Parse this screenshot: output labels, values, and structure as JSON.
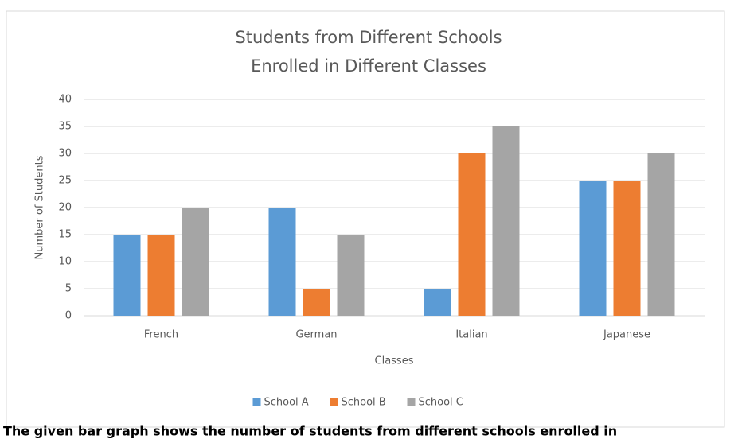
{
  "chart_data": {
    "type": "bar",
    "title": [
      "Students from Different Schools",
      "Enrolled in Different Classes"
    ],
    "x_label": "Classes",
    "y_label": "Number of Students",
    "categories": [
      "French",
      "German",
      "Italian",
      "Japanese"
    ],
    "series": [
      {
        "name": "School A",
        "color": "#5b9bd5",
        "values": [
          15,
          20,
          5,
          25
        ]
      },
      {
        "name": "School B",
        "color": "#ed7d31",
        "values": [
          15,
          5,
          30,
          25
        ]
      },
      {
        "name": "School C",
        "color": "#a5a5a5",
        "values": [
          20,
          15,
          35,
          30
        ]
      }
    ],
    "ylim": [
      0,
      40
    ],
    "yticks": [
      0,
      5,
      10,
      15,
      20,
      25,
      30,
      35,
      40
    ],
    "grid": true,
    "legend": "bottom"
  },
  "caption": "The given bar graph shows the number of students from different schools enrolled in"
}
